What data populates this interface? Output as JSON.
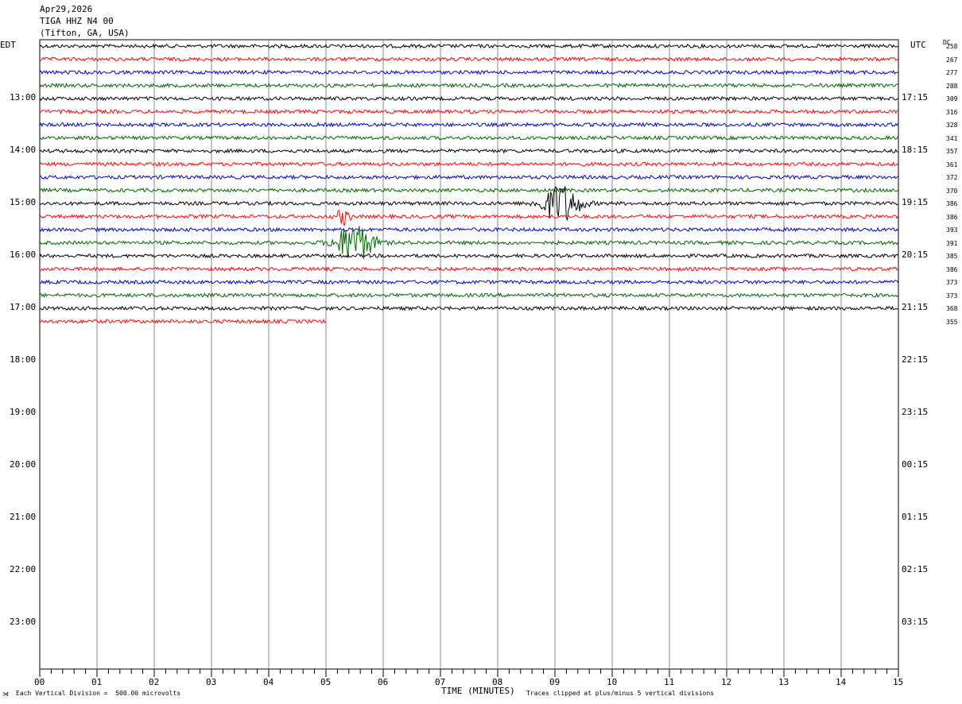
{
  "header": {
    "date": "Apr29,2026",
    "station": "TIGA HHZ N4 00",
    "location": "(Tifton, GA, USA)"
  },
  "left_timezone": "EDT",
  "right_timezone": "UTC",
  "dc_header": "DC",
  "footer": {
    "scale": "Each Vertical Division =  500.00 microvolts",
    "xlabel": "TIME (MINUTES)",
    "clip": "Traces clipped at plus/minus 5 vertical divisions"
  },
  "chart_data": {
    "type": "line",
    "title": "TIGA HHZ N4 00",
    "xlabel": "TIME (MINUTES)",
    "xlim": [
      0,
      15
    ],
    "x_ticks": [
      "00",
      "01",
      "02",
      "03",
      "04",
      "05",
      "06",
      "07",
      "08",
      "09",
      "10",
      "11",
      "12",
      "13",
      "14",
      "15"
    ],
    "hour_labels_left": [
      "13:00",
      "14:00",
      "15:00",
      "16:00",
      "17:00",
      "18:00",
      "19:00",
      "20:00",
      "21:00",
      "22:00",
      "23:00"
    ],
    "hour_labels_right": [
      "17:15",
      "18:15",
      "19:15",
      "20:15",
      "21:15",
      "22:15",
      "23:15",
      "00:15",
      "01:15",
      "02:15",
      "03:15"
    ],
    "trace_colors": [
      "#000000",
      "#ff0000",
      "#0000cc",
      "#006600"
    ],
    "dc_values": [
      "258",
      "267",
      "277",
      "288",
      "309",
      "316",
      "328",
      "341",
      "357",
      "361",
      "372",
      "370",
      "386",
      "386",
      "393",
      "391",
      "385",
      "386",
      "373",
      "373",
      "368",
      "355"
    ],
    "trace_count": 22,
    "last_trace_end_minute": 5.0,
    "events": [
      {
        "trace": 12,
        "center_minute": 9.1,
        "amplitude": 5
      },
      {
        "trace": 13,
        "center_minute": 5.3,
        "amplitude": 2
      },
      {
        "trace": 15,
        "center_minute": 5.5,
        "amplitude": 5
      }
    ],
    "grid": true
  }
}
